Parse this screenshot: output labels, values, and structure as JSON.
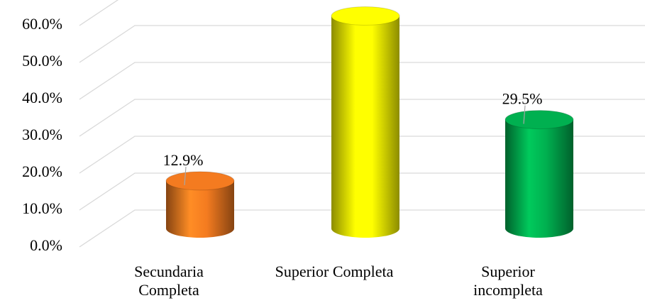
{
  "chart_data": {
    "type": "bar3d",
    "categories": [
      "Secundaria Completa",
      "Superior Completa",
      "Superior incompleta"
    ],
    "values": [
      12.9,
      57.6,
      29.5
    ],
    "value_labels": [
      "12.9%",
      null,
      "29.5%"
    ],
    "colors": [
      "#f47b20",
      "#ffff00",
      "#00b050"
    ],
    "ylim": [
      0,
      60
    ],
    "yticks": [
      {
        "value": 0,
        "label": "0.0%"
      },
      {
        "value": 10,
        "label": "10.0%"
      },
      {
        "value": 20,
        "label": "20.0%"
      },
      {
        "value": 30,
        "label": "30.0%"
      },
      {
        "value": 40,
        "label": "40.0%"
      },
      {
        "value": 50,
        "label": "50.0%"
      },
      {
        "value": 60,
        "label": "60.0%"
      }
    ],
    "grid": true
  }
}
